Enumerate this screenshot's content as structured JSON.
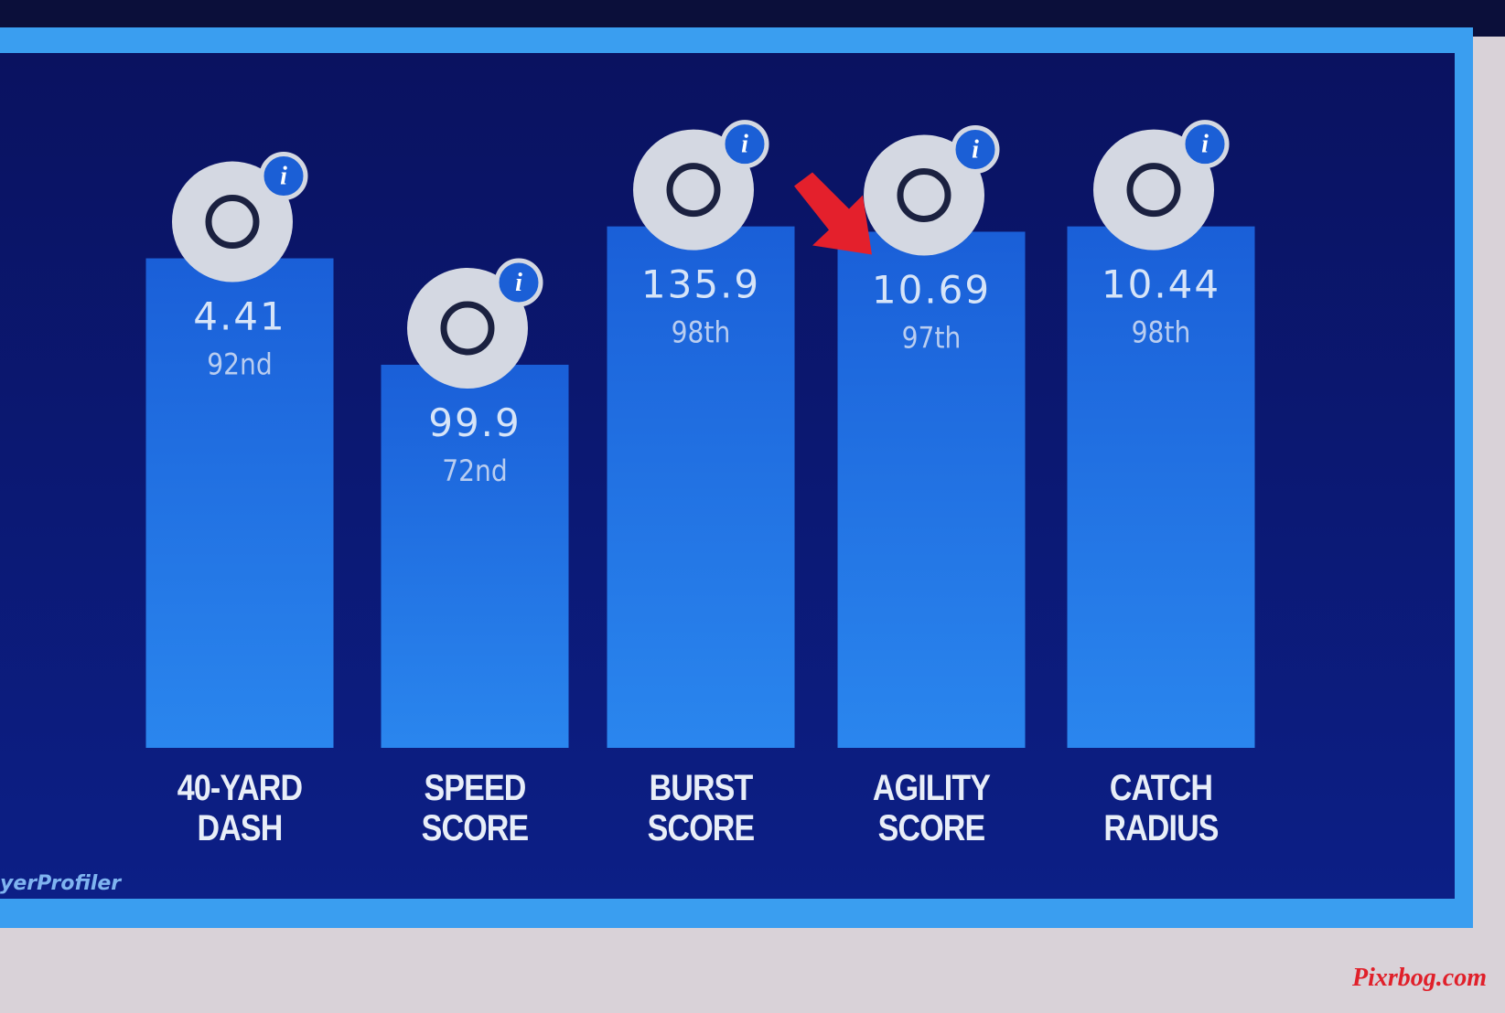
{
  "chart_data": {
    "type": "bar",
    "categories": [
      "40-YARD DASH",
      "SPEED SCORE",
      "BURST SCORE",
      "AGILITY SCORE",
      "CATCH RADIUS"
    ],
    "values": [
      92,
      72,
      98,
      97,
      98
    ],
    "value_labels": [
      "92nd",
      "72nd",
      "98th",
      "97th",
      "98th"
    ],
    "scores": [
      "4.41",
      "99.9",
      "135.9",
      "10.69",
      "10.44"
    ],
    "ylim": [
      0,
      100
    ],
    "color": "#1f74e8",
    "brand": "yerProfiler",
    "watermark": "Pixrbog.com"
  }
}
